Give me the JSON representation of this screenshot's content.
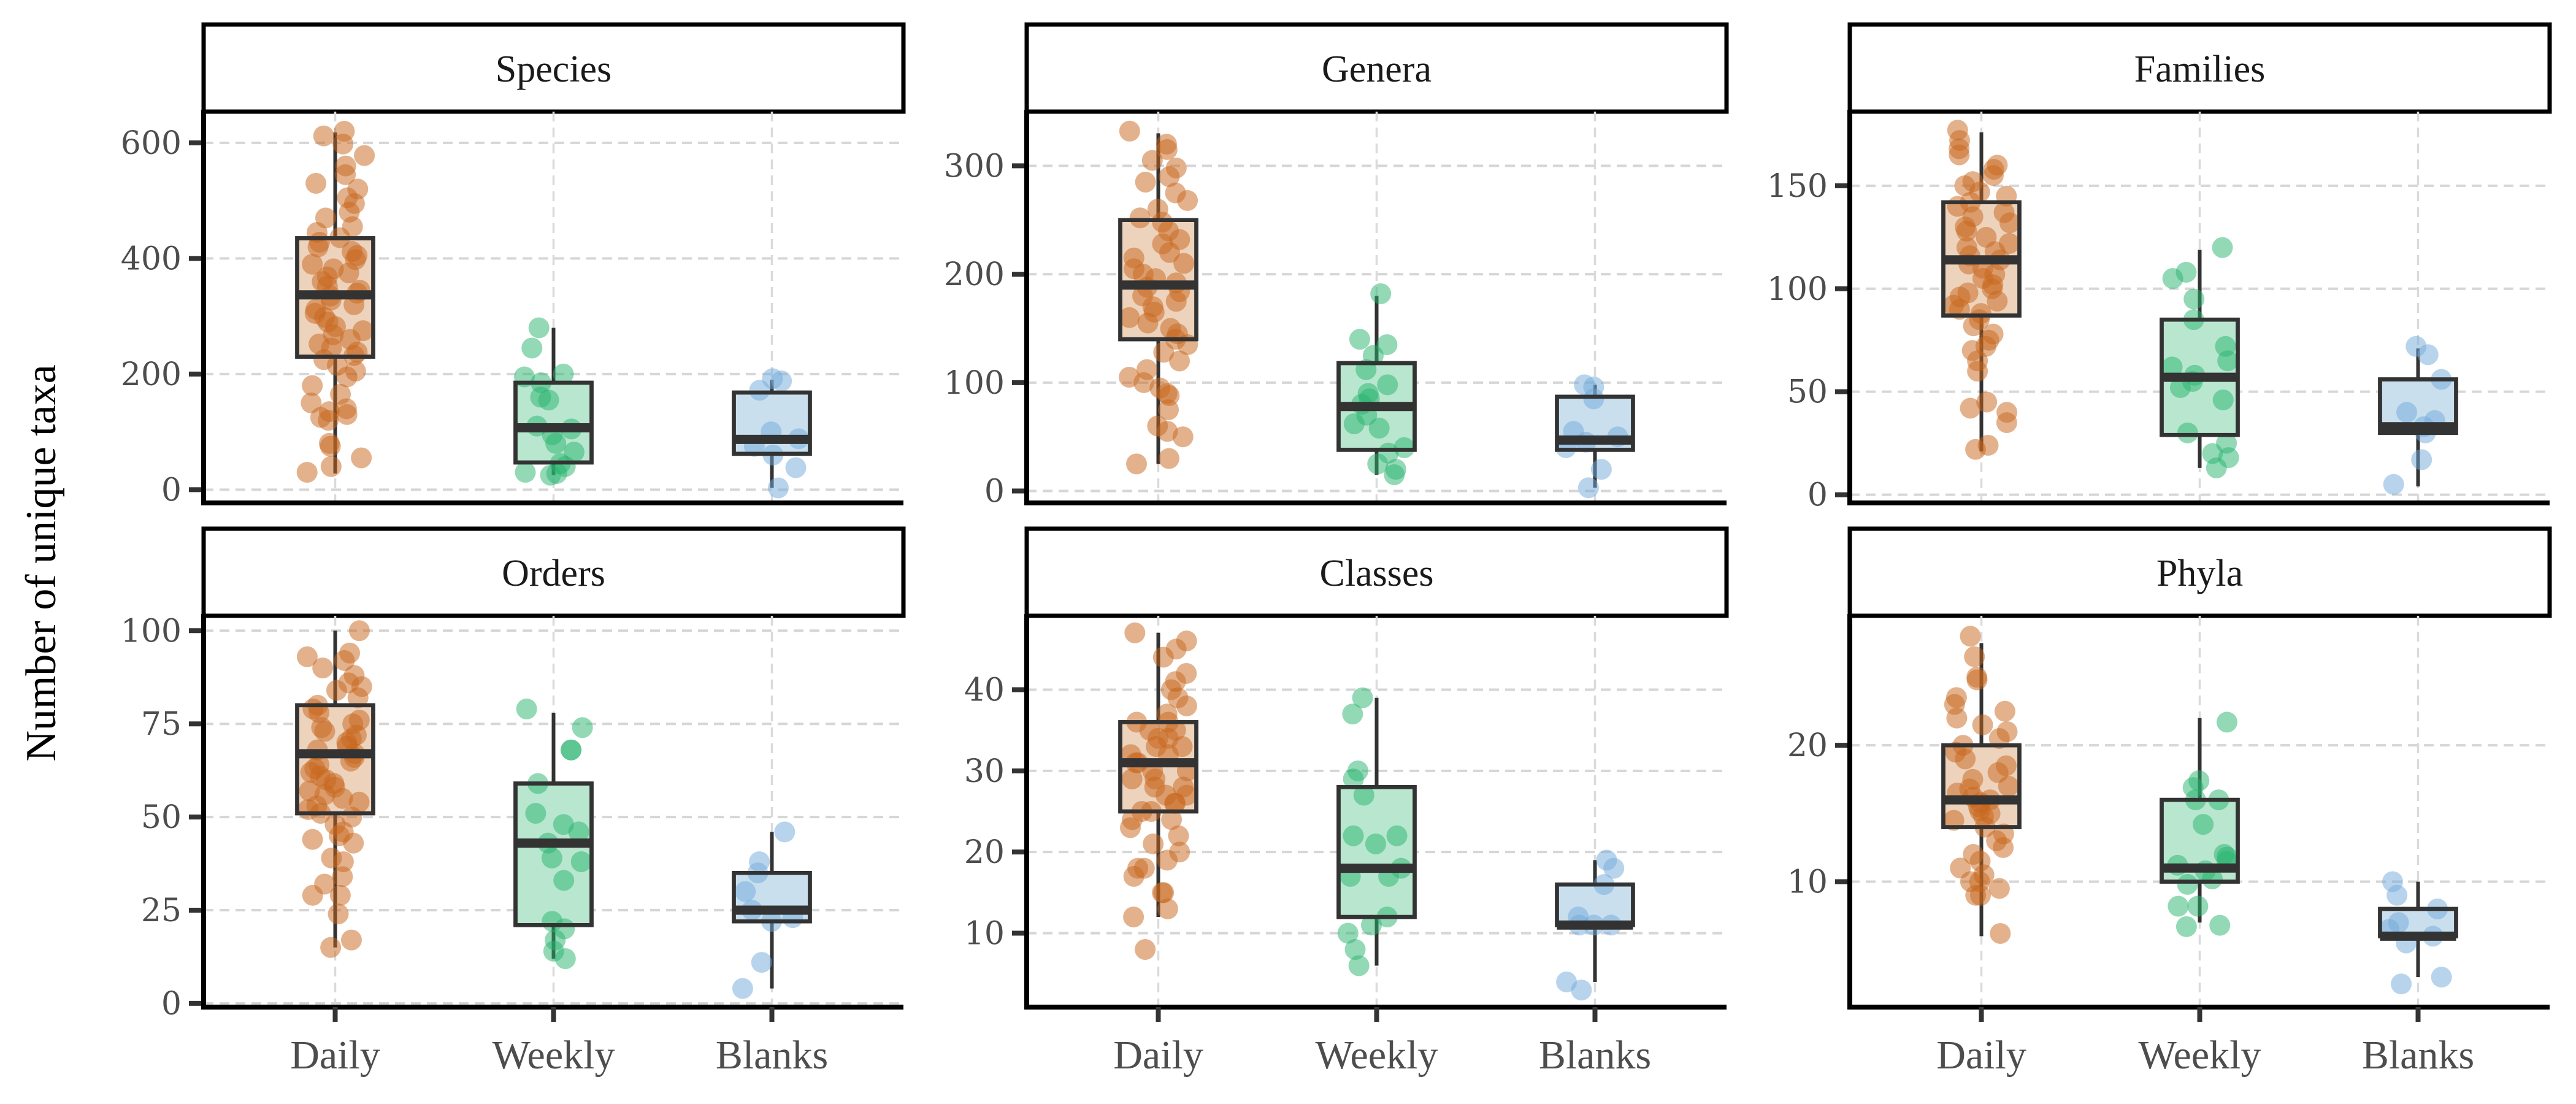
{
  "chart_data": {
    "type": "boxplot",
    "ylabel": "Number of unique taxa",
    "xlabel": "",
    "categories": [
      "Daily",
      "Weekly",
      "Blanks"
    ],
    "colors": {
      "Daily": {
        "point": "#C8651B",
        "fill": "#EDD3BC"
      },
      "Weekly": {
        "point": "#27B46E",
        "fill": "#B9E6CF"
      },
      "Blanks": {
        "point": "#72AADA",
        "fill": "#C9DFEE"
      }
    },
    "grid": true,
    "legend": "none",
    "panels": [
      {
        "title": "Species",
        "ylim": [
          -23,
          654
        ],
        "yticks": [
          0,
          200,
          400,
          600
        ],
        "groups": [
          {
            "name": "Daily",
            "q1": 230,
            "median": 337,
            "q3": 435,
            "whisker_low": 28,
            "whisker_high": 618,
            "points": [
              620,
              612,
              598,
              578,
              560,
              545,
              530,
              520,
              505,
              495,
              480,
              470,
              455,
              445,
              436,
              428,
              420,
              412,
              405,
              398,
              390,
              382,
              375,
              368,
              360,
              352,
              345,
              340,
              335,
              328,
              320,
              312,
              305,
              298,
              290,
              282,
              275,
              268,
              260,
              252,
              245,
              238,
              232,
              225,
              215,
              205,
              195,
              180,
              165,
              150,
              140,
              135,
              130,
              125,
              120,
              80,
              75,
              55,
              40,
              30
            ]
          },
          {
            "name": "Weekly",
            "q1": 47,
            "median": 107,
            "q3": 185,
            "whisker_low": 25,
            "whisker_high": 280,
            "points": [
              280,
              245,
              200,
              195,
              185,
              160,
              155,
              110,
              105,
              95,
              80,
              65,
              45,
              40,
              30,
              28,
              25
            ]
          },
          {
            "name": "Blanks",
            "q1": 62,
            "median": 87,
            "q3": 168,
            "whisker_low": 3,
            "whisker_high": 190,
            "points": [
              192,
              188,
              172,
              100,
              88,
              75,
              60,
              38,
              3
            ]
          }
        ]
      },
      {
        "title": "Genera",
        "ylim": [
          -11,
          350
        ],
        "yticks": [
          0,
          100,
          200,
          300
        ],
        "groups": [
          {
            "name": "Daily",
            "q1": 140,
            "median": 190,
            "q3": 250,
            "whisker_low": 25,
            "whisker_high": 330,
            "points": [
              332,
              320,
              315,
              305,
              298,
              290,
              285,
              275,
              268,
              260,
              252,
              248,
              240,
              232,
              228,
              220,
              215,
              210,
              205,
              200,
              196,
              192,
              188,
              184,
              180,
              175,
              170,
              165,
              160,
              155,
              150,
              145,
              140,
              135,
              128,
              120,
              112,
              105,
              100,
              95,
              90,
              88,
              75,
              60,
              55,
              50,
              30,
              25
            ]
          },
          {
            "name": "Weekly",
            "q1": 38,
            "median": 78,
            "q3": 118,
            "whisker_low": 15,
            "whisker_high": 180,
            "points": [
              182,
              140,
              135,
              125,
              112,
              98,
              90,
              85,
              80,
              70,
              62,
              58,
              40,
              35,
              25,
              20,
              15
            ]
          },
          {
            "name": "Blanks",
            "q1": 38,
            "median": 47,
            "q3": 87,
            "whisker_low": 3,
            "whisker_high": 98,
            "points": [
              98,
              96,
              85,
              55,
              50,
              45,
              40,
              20,
              3
            ]
          }
        ]
      },
      {
        "title": "Families",
        "ylim": [
          -4,
          186
        ],
        "yticks": [
          0,
          50,
          100,
          150
        ],
        "groups": [
          {
            "name": "Daily",
            "q1": 87,
            "median": 114,
            "q3": 142,
            "whisker_low": 21,
            "whisker_high": 176,
            "points": [
              177,
              172,
              168,
              165,
              160,
              158,
              155,
              152,
              150,
              147,
              145,
              142,
              140,
              137,
              135,
              132,
              130,
              128,
              125,
              122,
              120,
              118,
              116,
              114,
              112,
              110,
              107,
              105,
              102,
              100,
              98,
              96,
              94,
              92,
              90,
              88,
              85,
              82,
              78,
              75,
              72,
              70,
              65,
              60,
              45,
              42,
              40,
              35,
              24,
              22
            ]
          },
          {
            "name": "Weekly",
            "q1": 29,
            "median": 57,
            "q3": 85,
            "whisker_low": 13,
            "whisker_high": 119,
            "points": [
              120,
              108,
              105,
              95,
              85,
              72,
              65,
              62,
              58,
              55,
              52,
              46,
              30,
              25,
              20,
              18,
              13
            ]
          },
          {
            "name": "Blanks",
            "q1": 30,
            "median": 33,
            "q3": 56,
            "whisker_low": 4,
            "whisker_high": 71,
            "points": [
              72,
              68,
              56,
              40,
              36,
              33,
              30,
              17,
              5
            ]
          }
        ]
      },
      {
        "title": "Orders",
        "ylim": [
          -1,
          104
        ],
        "yticks": [
          0,
          25,
          50,
          75,
          100
        ],
        "groups": [
          {
            "name": "Daily",
            "q1": 51,
            "median": 67,
            "q3": 80,
            "whisker_low": 15,
            "whisker_high": 100,
            "points": [
              100,
              94,
              93,
              92,
              90,
              88,
              86,
              85,
              84,
              82,
              80,
              79,
              78,
              76,
              75,
              74,
              73,
              72,
              71,
              70,
              69,
              68,
              67,
              66,
              65,
              64,
              63,
              62,
              61,
              60,
              59,
              58,
              57,
              56,
              55,
              54,
              53,
              52,
              51,
              50,
              48,
              46,
              45,
              44,
              43,
              39,
              38,
              34,
              32,
              29,
              29,
              24,
              17,
              15
            ]
          },
          {
            "name": "Weekly",
            "q1": 21,
            "median": 43,
            "q3": 59,
            "whisker_low": 12,
            "whisker_high": 78,
            "points": [
              79,
              74,
              68,
              68,
              59,
              51,
              48,
              46,
              43,
              39,
              38,
              33,
              22,
              20,
              17,
              14,
              12
            ]
          },
          {
            "name": "Blanks",
            "q1": 22,
            "median": 25,
            "q3": 35,
            "whisker_low": 4,
            "whisker_high": 46,
            "points": [
              46,
              38,
              35,
              30,
              25,
              23,
              22,
              11,
              4
            ]
          }
        ]
      },
      {
        "title": "Classes",
        "ylim": [
          0.9,
          49.1
        ],
        "yticks": [
          10,
          20,
          30,
          40
        ],
        "groups": [
          {
            "name": "Daily",
            "q1": 25,
            "median": 31,
            "q3": 36,
            "whisker_low": 12,
            "whisker_high": 47,
            "points": [
              47,
              46,
              45,
              44,
              42,
              41,
              40,
              39,
              38,
              37,
              36,
              36,
              35,
              35,
              34,
              34,
              33,
              33,
              32,
              32,
              31,
              31,
              30,
              30,
              29,
              29,
              28,
              28,
              27,
              27,
              26,
              26,
              25,
              25,
              24,
              24,
              23,
              22,
              21,
              20,
              19,
              18,
              18,
              17,
              15,
              15,
              13,
              12,
              8
            ]
          },
          {
            "name": "Weekly",
            "q1": 12,
            "median": 18,
            "q3": 28,
            "whisker_low": 6,
            "whisker_high": 39,
            "points": [
              39,
              37,
              30,
              29,
              27,
              22,
              22,
              21,
              18,
              17,
              17,
              12,
              11,
              10,
              8,
              6
            ]
          },
          {
            "name": "Blanks",
            "q1": 11,
            "median": 11,
            "q3": 16,
            "whisker_low": 4,
            "whisker_high": 19,
            "points": [
              19,
              18,
              16,
              12,
              11,
              11,
              11,
              4,
              3
            ]
          }
        ]
      },
      {
        "title": "Phyla",
        "ylim": [
          0.8,
          29.5
        ],
        "yticks": [
          10,
          20
        ],
        "groups": [
          {
            "name": "Daily",
            "q1": 14,
            "median": 16,
            "q3": 20,
            "whisker_low": 6,
            "whisker_high": 27.5,
            "points": [
              28,
              26.5,
              25,
              24.8,
              23.5,
              23,
              22.5,
              22,
              21.5,
              21,
              20.5,
              20,
              19.5,
              19,
              18.5,
              18,
              17.5,
              17,
              16.8,
              16.5,
              16.2,
              16,
              15.8,
              15.5,
              15.2,
              15,
              14.8,
              14.5,
              14,
              13.5,
              13,
              12.5,
              12,
              11.5,
              11,
              10.5,
              10,
              10,
              9.5,
              9,
              9,
              6.2
            ]
          },
          {
            "name": "Weekly",
            "q1": 10,
            "median": 11,
            "q3": 16,
            "whisker_low": 7,
            "whisker_high": 22,
            "points": [
              21.7,
              17.4,
              16.9,
              16,
              16,
              14.2,
              12,
              11.8,
              11.5,
              11.2,
              10.8,
              10.2,
              9.8,
              8.2,
              8.2,
              6.8,
              6.7
            ]
          },
          {
            "name": "Blanks",
            "q1": 6,
            "median": 6,
            "q3": 8,
            "whisker_low": 3,
            "whisker_high": 10,
            "points": [
              10,
              9,
              8,
              7,
              6.5,
              6,
              5.5,
              3,
              2.5
            ]
          }
        ]
      }
    ]
  }
}
